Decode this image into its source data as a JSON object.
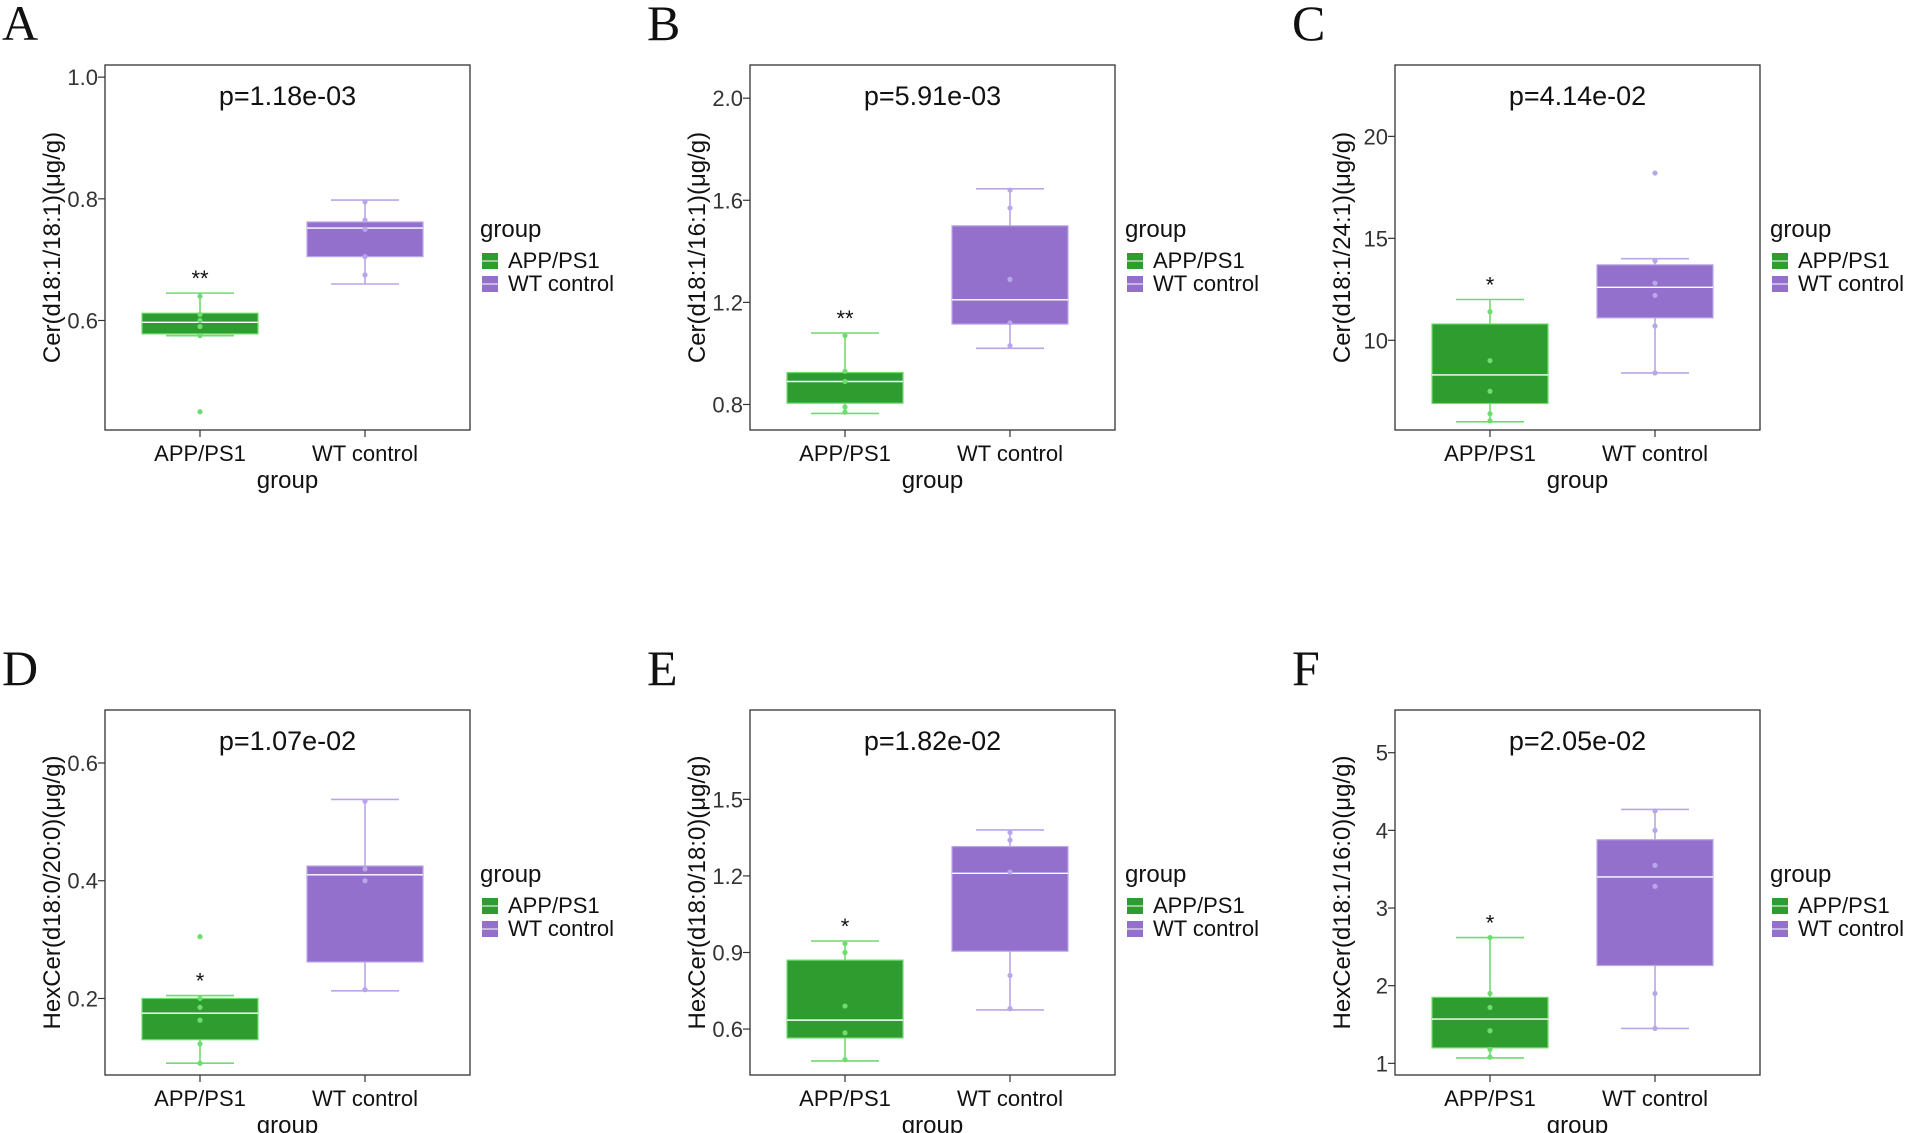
{
  "figure_title": "",
  "chart_data": [
    {
      "type": "box",
      "panel": "A",
      "title": "p=1.18e-03",
      "xlabel": "group",
      "ylabel": "Cer(d18:1/18:1)(μg/g)",
      "ylim": [
        0.42,
        1.02
      ],
      "yticks": [
        0.6,
        0.8,
        1.0
      ],
      "ytick_labels": [
        "0.6",
        "0.8",
        "1.0"
      ],
      "categories": [
        "APP/PS1",
        "WT control"
      ],
      "groups": [
        {
          "name": "APP/PS1",
          "color": "#2e9c2e",
          "point_color": "#6fdc6f",
          "min": 0.575,
          "q1": 0.578,
          "median": 0.597,
          "q3": 0.612,
          "max": 0.645,
          "points": [
            0.64,
            0.61,
            0.6,
            0.59,
            0.575,
            0.45
          ],
          "significance": "**"
        },
        {
          "name": "WT control",
          "color": "#9370cc",
          "point_color": "#b9a6e8",
          "min": 0.66,
          "q1": 0.705,
          "median": 0.752,
          "q3": 0.762,
          "max": 0.798,
          "points": [
            0.795,
            0.765,
            0.75,
            0.705,
            0.675
          ],
          "significance": ""
        }
      ]
    },
    {
      "type": "box",
      "panel": "B",
      "title": "p=5.91e-03",
      "xlabel": "group",
      "ylabel": "Cer(d18:1/16:1)(μg/g)",
      "ylim": [
        0.7,
        2.13
      ],
      "yticks": [
        0.8,
        1.2,
        1.6,
        2.0
      ],
      "ytick_labels": [
        "0.8",
        "1.2",
        "1.6",
        "2.0"
      ],
      "categories": [
        "APP/PS1",
        "WT control"
      ],
      "groups": [
        {
          "name": "APP/PS1",
          "color": "#2e9c2e",
          "point_color": "#6fdc6f",
          "min": 0.765,
          "q1": 0.805,
          "median": 0.89,
          "q3": 0.925,
          "max": 1.08,
          "points": [
            1.07,
            0.93,
            0.89,
            0.79,
            0.77
          ],
          "significance": "**"
        },
        {
          "name": "WT control",
          "color": "#9370cc",
          "point_color": "#b9a6e8",
          "min": 1.02,
          "q1": 1.115,
          "median": 1.21,
          "q3": 1.5,
          "max": 1.645,
          "points": [
            1.64,
            1.57,
            1.29,
            1.12,
            1.03
          ],
          "significance": ""
        }
      ]
    },
    {
      "type": "box",
      "panel": "C",
      "title": "p=4.14e-02",
      "xlabel": "group",
      "ylabel": "Cer(d18:1/24:1)(μg/g)",
      "ylim": [
        5.6,
        23.5
      ],
      "yticks": [
        10,
        15,
        20
      ],
      "ytick_labels": [
        "10",
        "15",
        "20"
      ],
      "categories": [
        "APP/PS1",
        "WT control"
      ],
      "groups": [
        {
          "name": "APP/PS1",
          "color": "#2e9c2e",
          "point_color": "#6fdc6f",
          "min": 6.0,
          "q1": 6.9,
          "median": 8.3,
          "q3": 10.8,
          "max": 12.0,
          "points": [
            11.4,
            9.0,
            7.5,
            6.4,
            6.05
          ],
          "significance": "*"
        },
        {
          "name": "WT control",
          "color": "#9370cc",
          "point_color": "#b9a6e8",
          "min": 8.4,
          "q1": 11.1,
          "median": 12.6,
          "q3": 13.7,
          "max": 14.0,
          "points": [
            18.2,
            13.9,
            12.8,
            12.2,
            10.7,
            8.4
          ],
          "significance": ""
        }
      ]
    },
    {
      "type": "box",
      "panel": "D",
      "title": "p=1.07e-02",
      "xlabel": "group",
      "ylabel": "HexCer(d18:0/20:0)(μg/g)",
      "ylim": [
        0.07,
        0.69
      ],
      "yticks": [
        0.2,
        0.4,
        0.6
      ],
      "ytick_labels": [
        "0.2",
        "0.4",
        "0.6"
      ],
      "categories": [
        "APP/PS1",
        "WT control"
      ],
      "groups": [
        {
          "name": "APP/PS1",
          "color": "#2e9c2e",
          "point_color": "#6fdc6f",
          "min": 0.09,
          "q1": 0.13,
          "median": 0.175,
          "q3": 0.2,
          "max": 0.205,
          "points": [
            0.305,
            0.2,
            0.185,
            0.163,
            0.123,
            0.09
          ],
          "significance": "*"
        },
        {
          "name": "WT control",
          "color": "#9370cc",
          "point_color": "#b9a6e8",
          "min": 0.213,
          "q1": 0.262,
          "median": 0.41,
          "q3": 0.425,
          "max": 0.538,
          "points": [
            0.535,
            0.42,
            0.4,
            0.215
          ],
          "significance": ""
        }
      ]
    },
    {
      "type": "box",
      "panel": "E",
      "title": "p=1.82e-02",
      "xlabel": "group",
      "ylabel": "HexCer(d18:0/18:0)(μg/g)",
      "ylim": [
        0.42,
        1.85
      ],
      "yticks": [
        0.6,
        0.9,
        1.2,
        1.5
      ],
      "ytick_labels": [
        "0.6",
        "0.9",
        "1.2",
        "1.5"
      ],
      "categories": [
        "APP/PS1",
        "WT control"
      ],
      "groups": [
        {
          "name": "APP/PS1",
          "color": "#2e9c2e",
          "point_color": "#6fdc6f",
          "min": 0.475,
          "q1": 0.565,
          "median": 0.635,
          "q3": 0.87,
          "max": 0.945,
          "points": [
            0.935,
            0.9,
            0.69,
            0.585,
            0.48
          ],
          "significance": "*"
        },
        {
          "name": "WT control",
          "color": "#9370cc",
          "point_color": "#b9a6e8",
          "min": 0.675,
          "q1": 0.905,
          "median": 1.21,
          "q3": 1.315,
          "max": 1.38,
          "points": [
            1.37,
            1.34,
            1.215,
            0.81,
            0.68
          ],
          "significance": ""
        }
      ]
    },
    {
      "type": "box",
      "panel": "F",
      "title": "p=2.05e-02",
      "xlabel": "group",
      "ylabel": "HexCer(d18:1/16:0)(μg/g)",
      "ylim": [
        0.85,
        5.55
      ],
      "yticks": [
        1,
        2,
        3,
        4,
        5
      ],
      "ytick_labels": [
        "1",
        "2",
        "3",
        "4",
        "5"
      ],
      "categories": [
        "APP/PS1",
        "WT control"
      ],
      "groups": [
        {
          "name": "APP/PS1",
          "color": "#2e9c2e",
          "point_color": "#6fdc6f",
          "min": 1.07,
          "q1": 1.2,
          "median": 1.57,
          "q3": 1.85,
          "max": 2.62,
          "points": [
            2.62,
            1.9,
            1.72,
            1.42,
            1.18,
            1.08
          ],
          "significance": "*"
        },
        {
          "name": "WT control",
          "color": "#9370cc",
          "point_color": "#b9a6e8",
          "min": 1.45,
          "q1": 2.26,
          "median": 3.4,
          "q3": 3.88,
          "max": 4.27,
          "points": [
            4.25,
            4.0,
            3.55,
            3.28,
            1.9,
            1.45
          ],
          "significance": ""
        }
      ]
    }
  ],
  "legend": {
    "title": "group",
    "items": [
      {
        "label": "APP/PS1",
        "color": "#2e9c2e"
      },
      {
        "label": "WT control",
        "color": "#9370cc"
      }
    ]
  }
}
